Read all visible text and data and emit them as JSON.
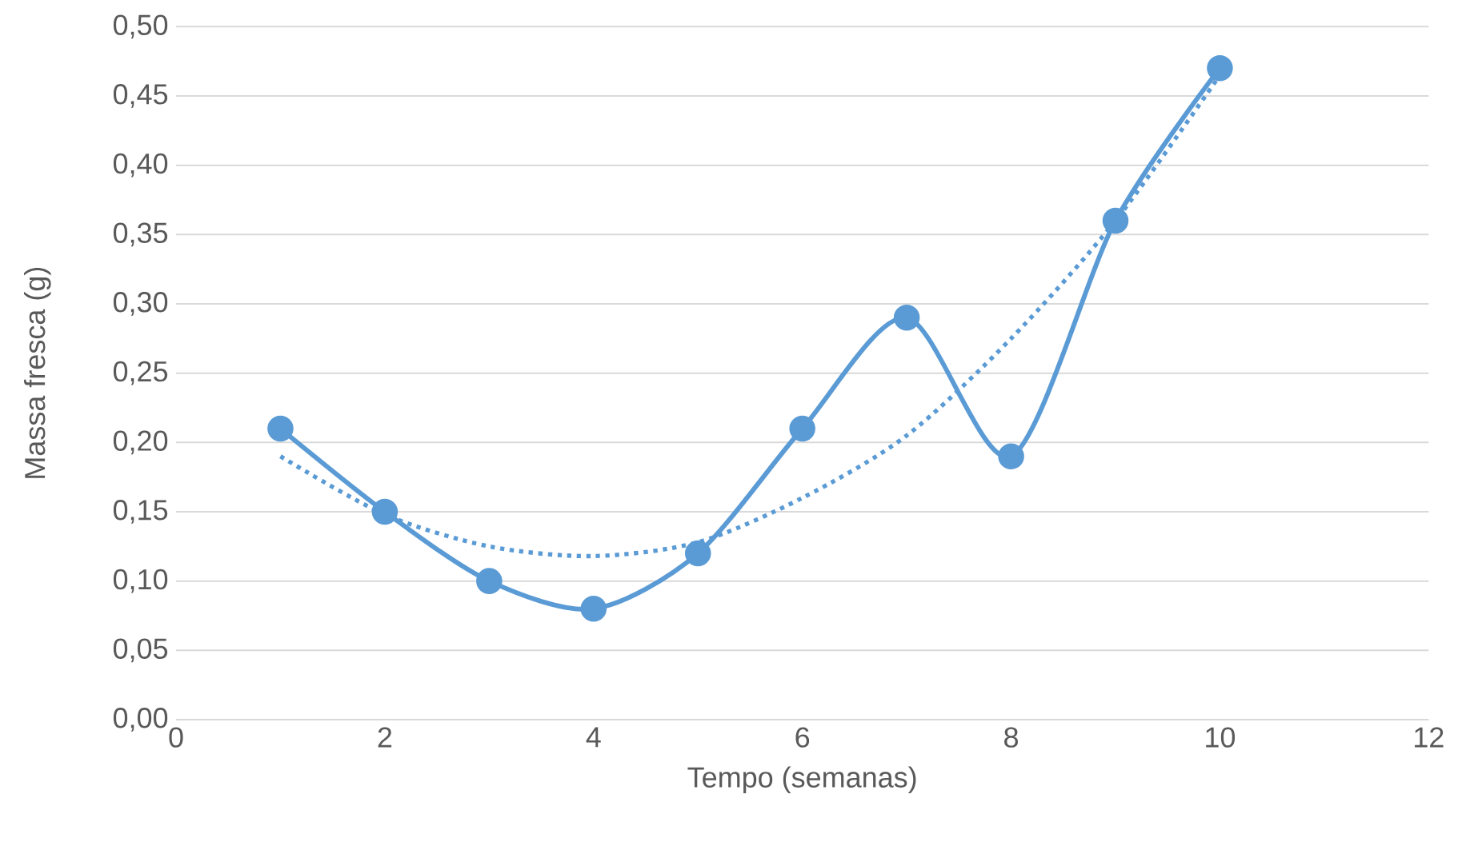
{
  "chart_data": {
    "type": "line",
    "xlabel": "Tempo (semanas)",
    "ylabel": "Massa fresca (g)",
    "xlim": [
      0,
      12
    ],
    "ylim": [
      0,
      0.5
    ],
    "xticks": [
      0,
      2,
      4,
      6,
      8,
      10,
      12
    ],
    "yticks": [
      {
        "value": 0,
        "label": "0,00"
      },
      {
        "value": 0.05,
        "label": "0,05"
      },
      {
        "value": 0.1,
        "label": "0,10"
      },
      {
        "value": 0.15,
        "label": "0,15"
      },
      {
        "value": 0.2,
        "label": "0,20"
      },
      {
        "value": 0.25,
        "label": "0,25"
      },
      {
        "value": 0.3,
        "label": "0,30"
      },
      {
        "value": 0.35,
        "label": "0,35"
      },
      {
        "value": 0.4,
        "label": "0,40"
      },
      {
        "value": 0.45,
        "label": "0,45"
      },
      {
        "value": 0.5,
        "label": "0,50"
      }
    ],
    "grid": "y",
    "series": [
      {
        "color": "#5b9bd5",
        "marker": "circle",
        "line_style": "solid",
        "x": [
          1,
          2,
          3,
          4,
          5,
          6,
          7,
          8,
          9,
          10
        ],
        "values": [
          0.21,
          0.15,
          0.1,
          0.08,
          0.12,
          0.21,
          0.29,
          0.19,
          0.36,
          0.47
        ]
      },
      {
        "color": "#5b9bd5",
        "marker": "none",
        "line_style": "dotted",
        "x": [
          1,
          2,
          3,
          4,
          5,
          6,
          7,
          8,
          9,
          10
        ],
        "values": [
          0.19,
          0.148,
          0.125,
          0.118,
          0.128,
          0.16,
          0.205,
          0.275,
          0.36,
          0.465
        ]
      }
    ]
  }
}
